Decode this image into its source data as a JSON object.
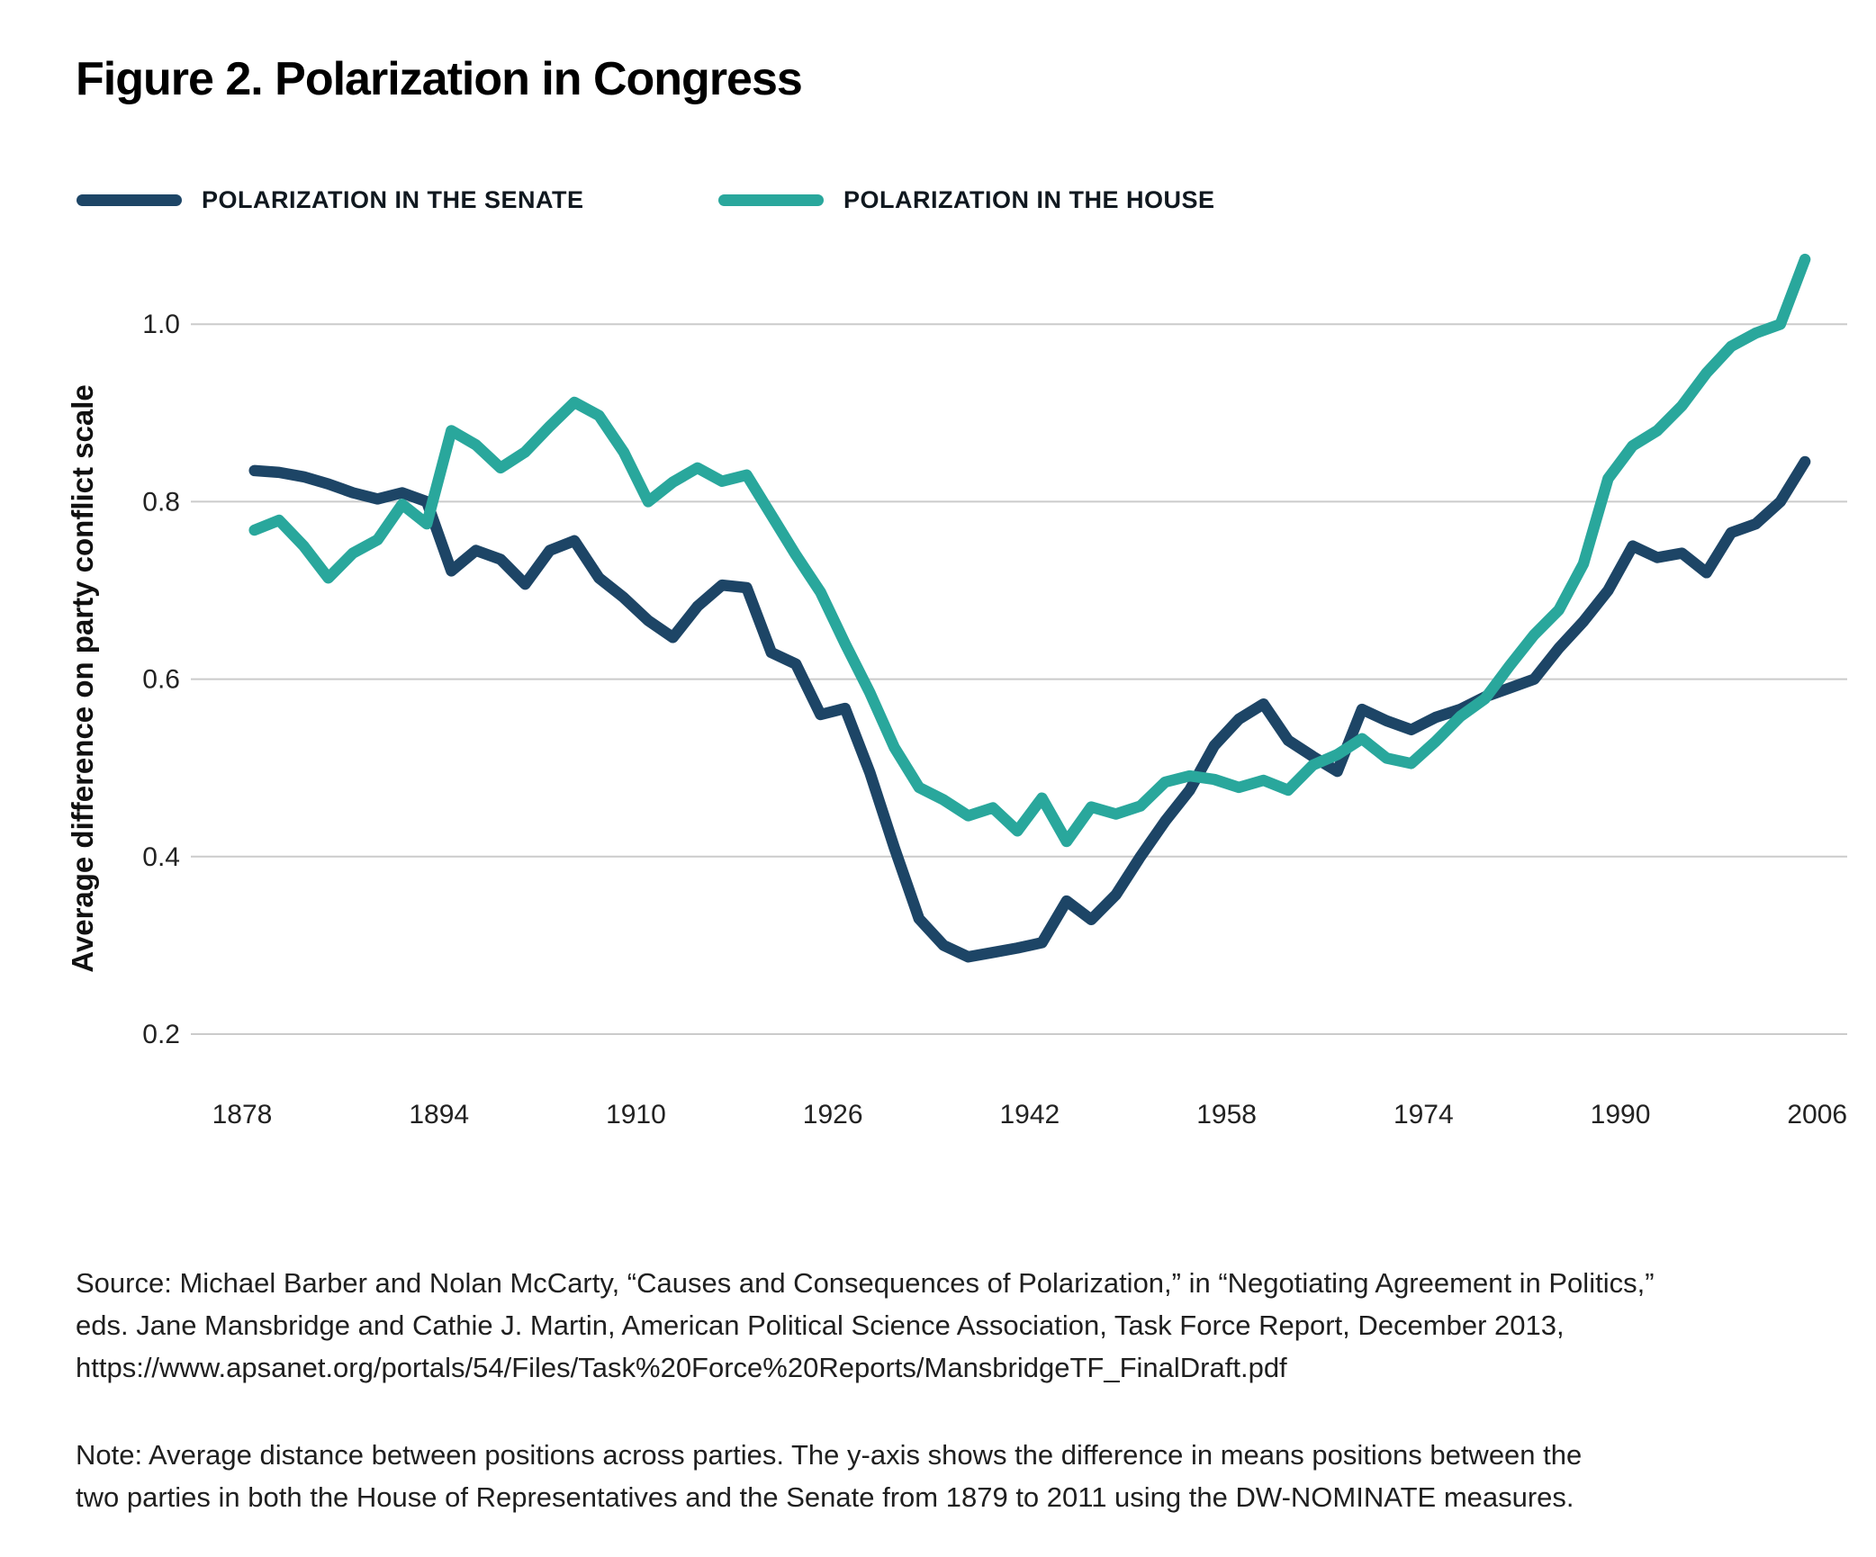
{
  "title": "Figure 2. Polarization in Congress",
  "legend": [
    {
      "label": "POLARIZATION IN THE SENATE",
      "color": "#1d4566"
    },
    {
      "label": "POLARIZATION IN THE HOUSE",
      "color": "#29a79c"
    }
  ],
  "chart_data": {
    "type": "line",
    "title": "Figure 2. Polarization in Congress",
    "xlabel": "",
    "ylabel": "Average difference on party conflict scale",
    "yticks": [
      0.2,
      0.4,
      0.6,
      0.8,
      1.0
    ],
    "xticks": [
      1878,
      1894,
      1910,
      1926,
      1942,
      1958,
      1974,
      1990,
      2006
    ],
    "ylim": [
      0.13,
      1.1
    ],
    "xlim": [
      1874,
      2010
    ],
    "grid": "horizontal",
    "legend_position": "top-left",
    "x": [
      1879,
      1881,
      1883,
      1885,
      1887,
      1889,
      1891,
      1893,
      1895,
      1897,
      1899,
      1901,
      1903,
      1905,
      1907,
      1909,
      1911,
      1913,
      1915,
      1917,
      1919,
      1921,
      1923,
      1925,
      1927,
      1929,
      1931,
      1933,
      1935,
      1937,
      1939,
      1941,
      1943,
      1945,
      1947,
      1949,
      1951,
      1953,
      1955,
      1957,
      1959,
      1961,
      1963,
      1965,
      1967,
      1969,
      1971,
      1973,
      1975,
      1977,
      1979,
      1981,
      1983,
      1985,
      1987,
      1989,
      1991,
      1993,
      1995,
      1997,
      1999,
      2001,
      2003,
      2005
    ],
    "series": [
      {
        "name": "Polarization in the Senate",
        "color": "#1d4566",
        "values": [
          0.835,
          0.833,
          0.828,
          0.82,
          0.81,
          0.803,
          0.81,
          0.8,
          0.722,
          0.745,
          0.735,
          0.707,
          0.745,
          0.756,
          0.714,
          0.692,
          0.666,
          0.647,
          0.682,
          0.706,
          0.703,
          0.63,
          0.617,
          0.56,
          0.567,
          0.495,
          0.41,
          0.33,
          0.3,
          0.287,
          0.292,
          0.297,
          0.303,
          0.35,
          0.329,
          0.357,
          0.4,
          0.44,
          0.475,
          0.525,
          0.555,
          0.572,
          0.531,
          0.513,
          0.496,
          0.566,
          0.553,
          0.543,
          0.557,
          0.566,
          0.58,
          0.59,
          0.6,
          0.635,
          0.665,
          0.7,
          0.75,
          0.737,
          0.742,
          0.72,
          0.765,
          0.775,
          0.8,
          0.845
        ]
      },
      {
        "name": "Polarization in the House",
        "color": "#29a79c",
        "values": [
          0.768,
          0.779,
          0.75,
          0.714,
          0.742,
          0.757,
          0.797,
          0.775,
          0.88,
          0.864,
          0.838,
          0.856,
          0.885,
          0.912,
          0.897,
          0.856,
          0.8,
          0.822,
          0.838,
          0.823,
          0.83,
          0.785,
          0.74,
          0.698,
          0.64,
          0.585,
          0.523,
          0.478,
          0.464,
          0.446,
          0.455,
          0.429,
          0.466,
          0.417,
          0.456,
          0.448,
          0.457,
          0.484,
          0.491,
          0.487,
          0.478,
          0.486,
          0.475,
          0.503,
          0.515,
          0.533,
          0.511,
          0.505,
          0.53,
          0.558,
          0.578,
          0.615,
          0.65,
          0.678,
          0.73,
          0.826,
          0.863,
          0.88,
          0.908,
          0.945,
          0.975,
          0.99,
          1.0,
          1.073
        ]
      }
    ]
  },
  "source": {
    "lines": [
      "Source: Michael Barber and Nolan McCarty, “Causes and Consequences of Polarization,” in “Negotiating Agreement in Politics,”",
      "eds. Jane Mansbridge and Cathie J. Martin, American Political Science Association, Task Force Report, December 2013,",
      "https://www.apsanet.org/portals/54/Files/Task%20Force%20Reports/MansbridgeTF_FinalDraft.pdf"
    ]
  },
  "note": {
    "lines": [
      "Note: Average distance between positions across parties. The y-axis shows the difference in means positions between the",
      "two parties in both the House of Representatives and the Senate from 1879 to 2011 using the DW-NOMINATE measures."
    ]
  }
}
